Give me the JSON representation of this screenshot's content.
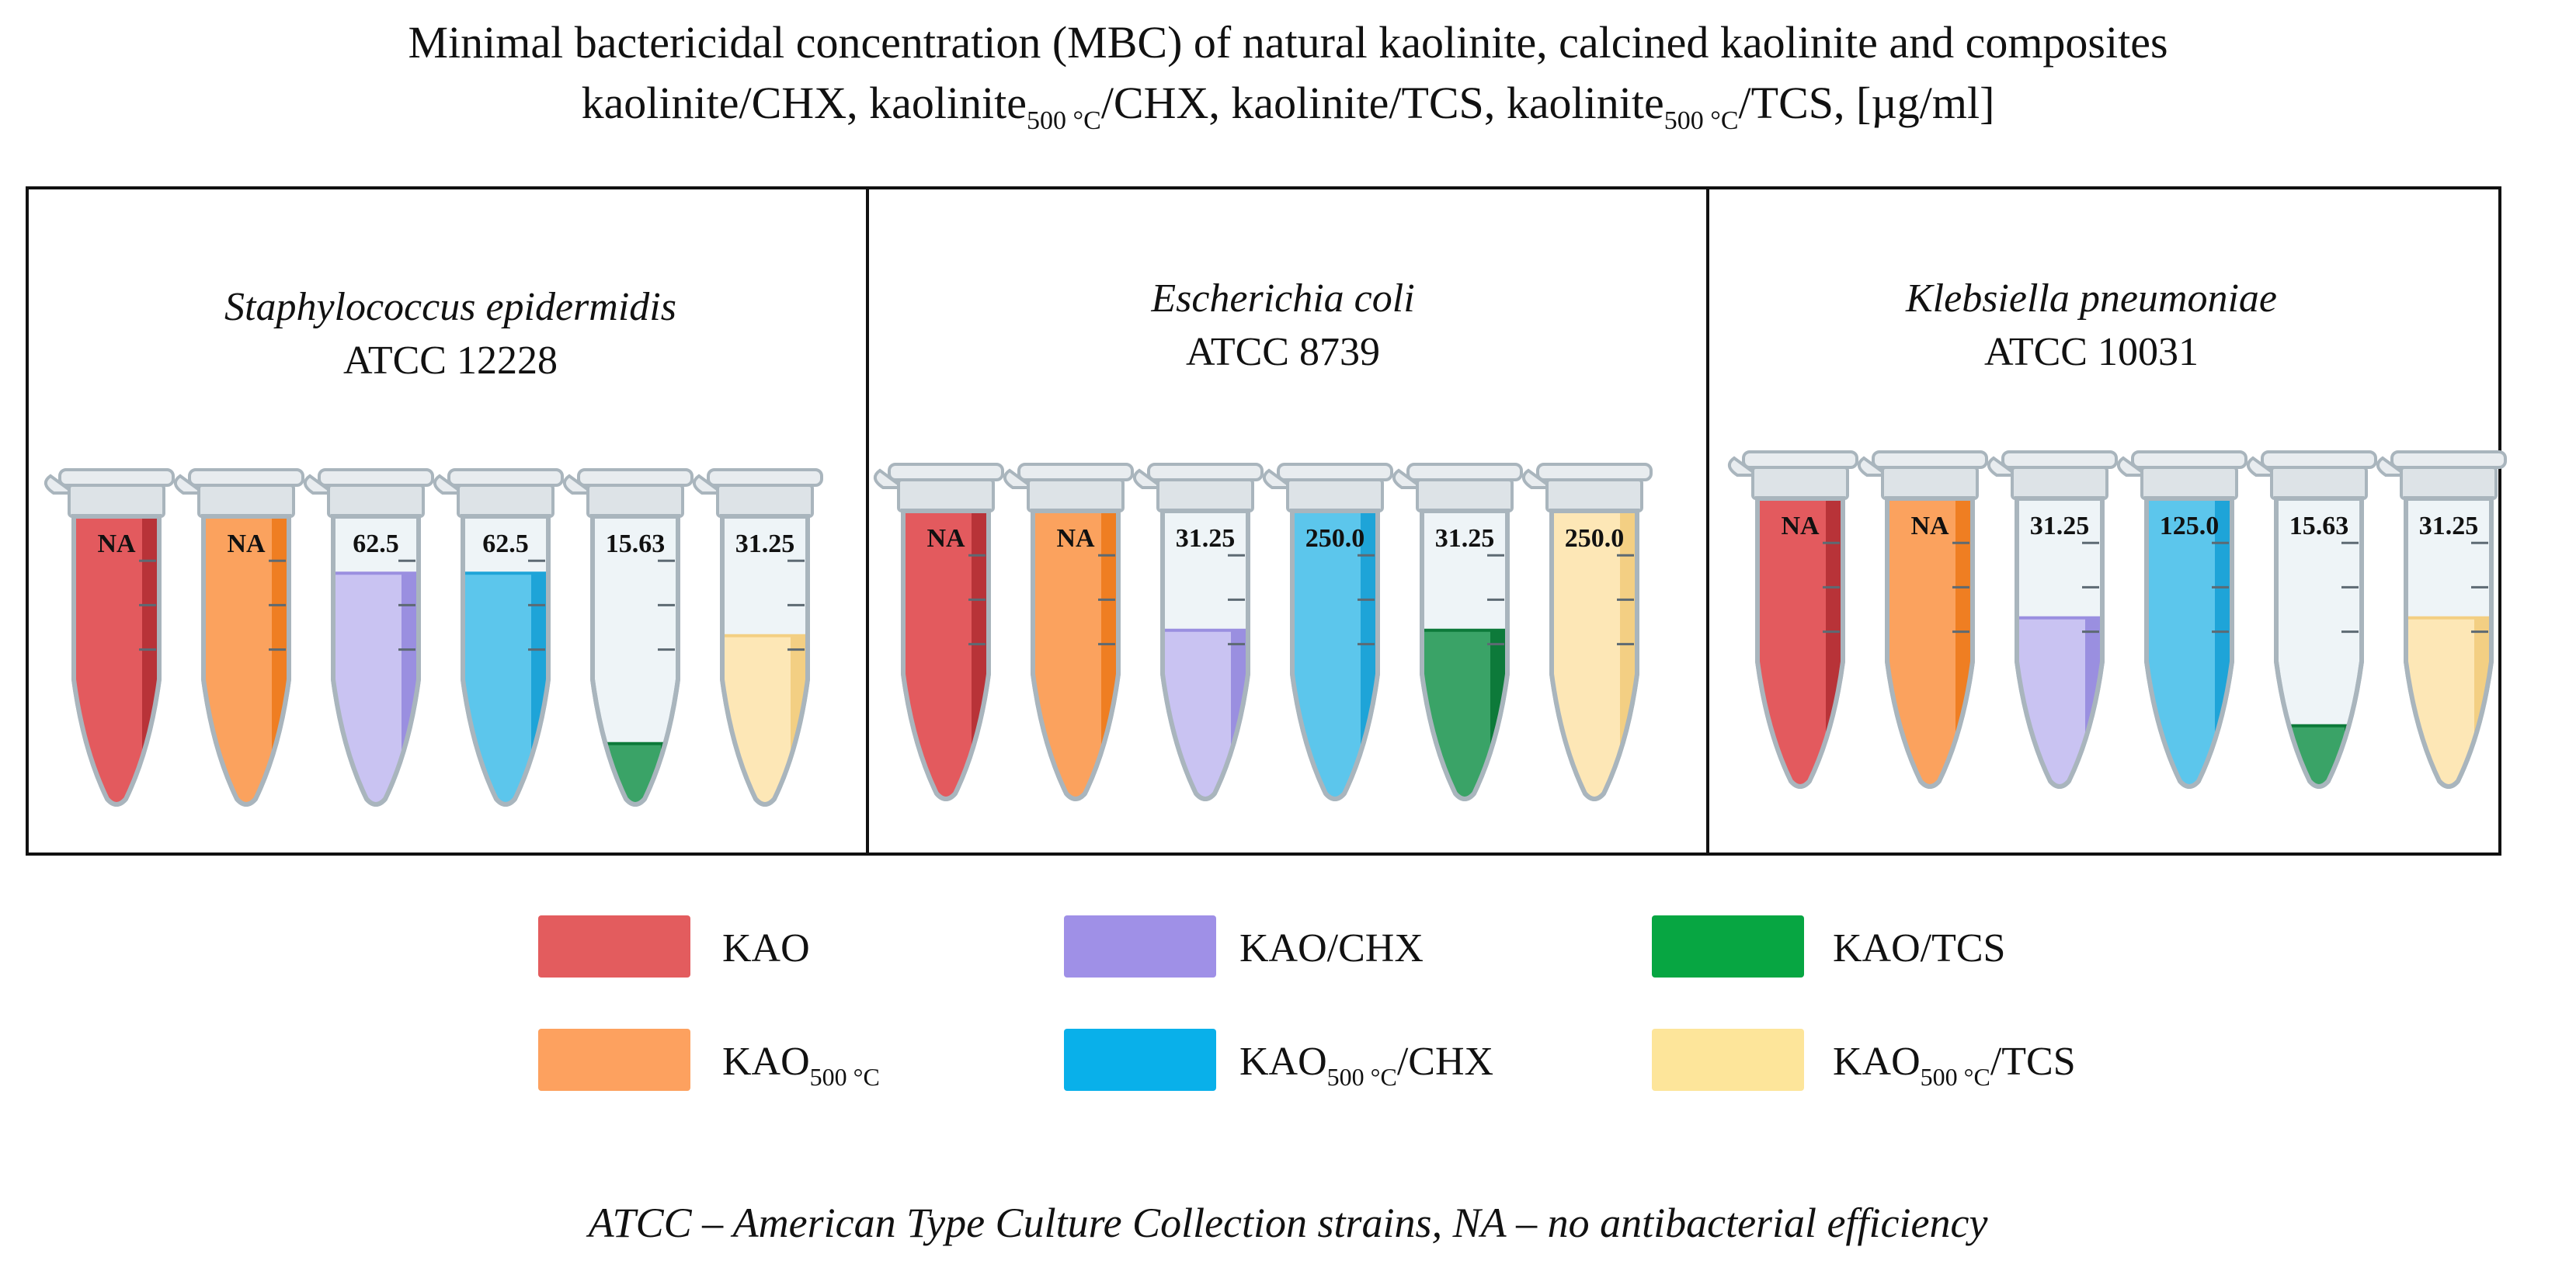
{
  "title": {
    "line1": "Minimal bactericidal concentration (MBC) of natural kaolinite, calcined kaolinite and composites",
    "line2_a": "kaolinite/CHX, kaolinite",
    "line2_sub1": "500 °C",
    "line2_b": "/CHX, kaolinite/TCS, kaolinite",
    "line2_sub2": "500 °C",
    "line2_c": "/TCS, [µg/ml]"
  },
  "series": [
    {
      "key": "kao",
      "label": "KAO",
      "label_sub": "",
      "label_suffix": "",
      "color": "#e35a5e",
      "dark": "#b83338"
    },
    {
      "key": "kao500",
      "label": "KAO",
      "label_sub": "500 °C",
      "label_suffix": "",
      "color": "#fba25e",
      "dark": "#ef7e22"
    },
    {
      "key": "kaochx",
      "label": "KAO/CHX",
      "label_sub": "",
      "label_suffix": "",
      "color": "#c9c3f2",
      "dark": "#9a8fe0"
    },
    {
      "key": "kao500chx",
      "label": "KAO",
      "label_sub": "500 °C",
      "label_suffix": "/CHX",
      "color": "#5cc6ec",
      "dark": "#1ea4d8"
    },
    {
      "key": "kaotcs",
      "label": "KAO/TCS",
      "label_sub": "",
      "label_suffix": "",
      "color": "#3aa367",
      "dark": "#0d7a3a"
    },
    {
      "key": "kao500tcs",
      "label": "KAO",
      "label_sub": "500 °C",
      "label_suffix": "/TCS",
      "color": "#fde7b6",
      "dark": "#f3cf83"
    }
  ],
  "legend_colors": [
    "#e35c5e",
    "#fda15f",
    "#9f90e7",
    "#09b0ea",
    "#07a642",
    "#fde59a"
  ],
  "tube_colors": {
    "glass": "#eef4f7",
    "outline": "#a9b5bd",
    "cap": "#e8ecef",
    "tick": "#5d6a73"
  },
  "panels": [
    {
      "species": "Staphylococcus epidermidis",
      "strain": "ATCC 12228",
      "tubes": [
        {
          "label": "NA",
          "fill": 1.0
        },
        {
          "label": "NA",
          "fill": 1.0
        },
        {
          "label": "62.5",
          "fill": 0.8
        },
        {
          "label": "62.5",
          "fill": 0.8
        },
        {
          "label": "15.63",
          "fill": 0.2
        },
        {
          "label": "31.25",
          "fill": 0.58
        }
      ]
    },
    {
      "species": "Escherichia coli",
      "strain": "ATCC 8739",
      "tubes": [
        {
          "label": "NA",
          "fill": 1.0
        },
        {
          "label": "NA",
          "fill": 1.0
        },
        {
          "label": "31.25",
          "fill": 0.58
        },
        {
          "label": "250.0",
          "fill": 1.0
        },
        {
          "label": "31.25",
          "fill": 0.58
        },
        {
          "label": "250.0",
          "fill": 1.0
        }
      ]
    },
    {
      "species": "Klebsiella pneumoniae",
      "strain": "ATCC 10031",
      "tubes": [
        {
          "label": "NA",
          "fill": 1.0
        },
        {
          "label": "NA",
          "fill": 1.0
        },
        {
          "label": "31.25",
          "fill": 0.58
        },
        {
          "label": "125.0",
          "fill": 1.0
        },
        {
          "label": "15.63",
          "fill": 0.2
        },
        {
          "label": "31.25",
          "fill": 0.58
        }
      ]
    }
  ],
  "footnote": "ATCC – American Type Culture Collection strains, NA – no antibacterial efficiency"
}
